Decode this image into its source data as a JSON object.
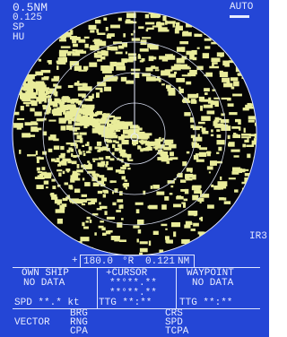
{
  "header": {
    "range": "0.5NM",
    "ring_interval": "0.125",
    "mode_1": "SP",
    "mode_2": "HU",
    "gain": "AUTO",
    "interference_rejection": "IR3"
  },
  "cursor_readout": {
    "symbol": "+",
    "bearing": "180.0",
    "bearing_unit": "°R",
    "range": "0.121",
    "range_unit": "NM"
  },
  "panels": {
    "own_ship": {
      "title": "OWN SHIP",
      "status": "NO DATA",
      "speed": "SPD **.* kt"
    },
    "cursor": {
      "title": "+CURSOR",
      "lat": "**°**.**",
      "lon": "**°**.**",
      "ttg": "TTG **:**"
    },
    "waypoint": {
      "title": "WAYPOINT",
      "status": "NO DATA",
      "ttg": "TTG **:**"
    }
  },
  "vector": {
    "title": "VECTOR",
    "left": [
      "BRG",
      "RNG",
      "CPA"
    ],
    "right": [
      "CRS",
      "SPD",
      "TCPA"
    ]
  }
}
